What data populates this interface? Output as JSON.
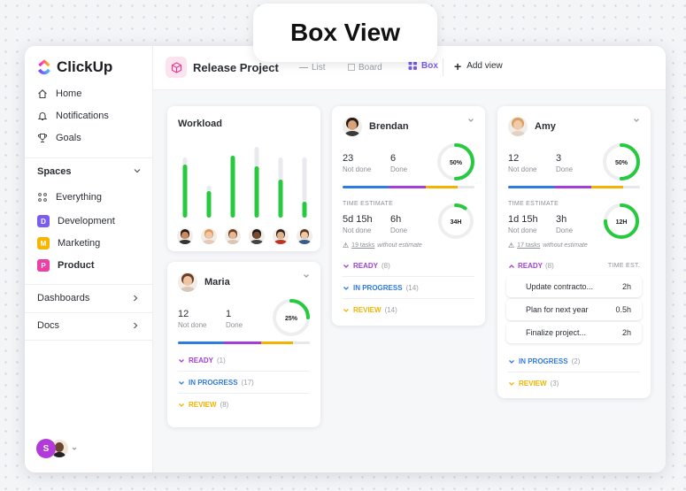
{
  "banner": "Box View",
  "app": {
    "name": "ClickUp"
  },
  "sidebar": {
    "nav": [
      {
        "label": "Home",
        "icon": "home-icon"
      },
      {
        "label": "Notifications",
        "icon": "bell-icon"
      },
      {
        "label": "Goals",
        "icon": "trophy-icon"
      }
    ],
    "spaces_label": "Spaces",
    "everything_label": "Everything",
    "spaces": [
      {
        "letter": "D",
        "label": "Development",
        "color": "#7b5cf2"
      },
      {
        "letter": "M",
        "label": "Marketing",
        "color": "#f7b500"
      },
      {
        "letter": "P",
        "label": "Product",
        "color": "#ee3fa6"
      }
    ],
    "dashboards": "Dashboards",
    "docs": "Docs",
    "user_initial": "S"
  },
  "topbar": {
    "project": "Release Project",
    "views": [
      "List",
      "Board",
      "Box"
    ],
    "active_view": "Box",
    "add_view": "Add view"
  },
  "workload": {
    "title": "Workload",
    "bars": [
      0.6,
      0.3,
      0.7,
      0.58,
      0.43,
      0.18
    ]
  },
  "people": [
    {
      "name": "Brendan",
      "not_done": "23",
      "not_done_label": "Not done",
      "done": "6",
      "done_label": "Done",
      "pct": "50%",
      "pct_value": 0.5,
      "est_label": "TIME ESTIMATE",
      "est_not_done": "5d 15h",
      "est_done": "6h",
      "est_ring": "34H",
      "est_ring_value": 0.1,
      "warning_count": "19 tasks",
      "warning_text": "without estimate",
      "groups": [
        {
          "label": "READY",
          "count": "(8)",
          "color": "#a33fd6"
        },
        {
          "label": "IN PROGRESS",
          "count": "(14)",
          "color": "#2f7ae5"
        },
        {
          "label": "REVIEW",
          "count": "(14)",
          "color": "#f2b400"
        }
      ]
    },
    {
      "name": "Amy",
      "not_done": "12",
      "not_done_label": "Not done",
      "done": "3",
      "done_label": "Done",
      "pct": "50%",
      "pct_value": 0.5,
      "est_label": "TIME ESTIMATE",
      "est_not_done": "1d 15h",
      "est_done": "3h",
      "est_ring": "12H",
      "est_ring_value": 0.75,
      "warning_count": "17 tasks",
      "warning_text": "without estimate",
      "ready_label": "READY",
      "ready_count": "(8)",
      "time_est_label": "TIME EST.",
      "tasks": [
        {
          "name": "Update contracto...",
          "est": "2h"
        },
        {
          "name": "Plan for next year",
          "est": "0.5h"
        },
        {
          "name": "Finalize project...",
          "est": "2h"
        }
      ],
      "groups": [
        {
          "label": "IN PROGRESS",
          "count": "(2)",
          "color": "#2f7ae5"
        },
        {
          "label": "REVIEW",
          "count": "(3)",
          "color": "#f2b400"
        }
      ]
    },
    {
      "name": "Maria",
      "not_done": "12",
      "not_done_label": "Not done",
      "done": "1",
      "done_label": "Done",
      "pct": "25%",
      "pct_value": 0.25,
      "groups": [
        {
          "label": "READY",
          "count": "(1)",
          "color": "#a33fd6"
        },
        {
          "label": "IN PROGRESS",
          "count": "(17)",
          "color": "#2f7ae5"
        },
        {
          "label": "REVIEW",
          "count": "(8)",
          "color": "#f2b400"
        }
      ]
    }
  ],
  "colors": {
    "accent": "#7b5cf2",
    "green": "#27c93f",
    "purple": "#a33fd6",
    "blue": "#2f7ae5",
    "yellow": "#f2b400"
  }
}
